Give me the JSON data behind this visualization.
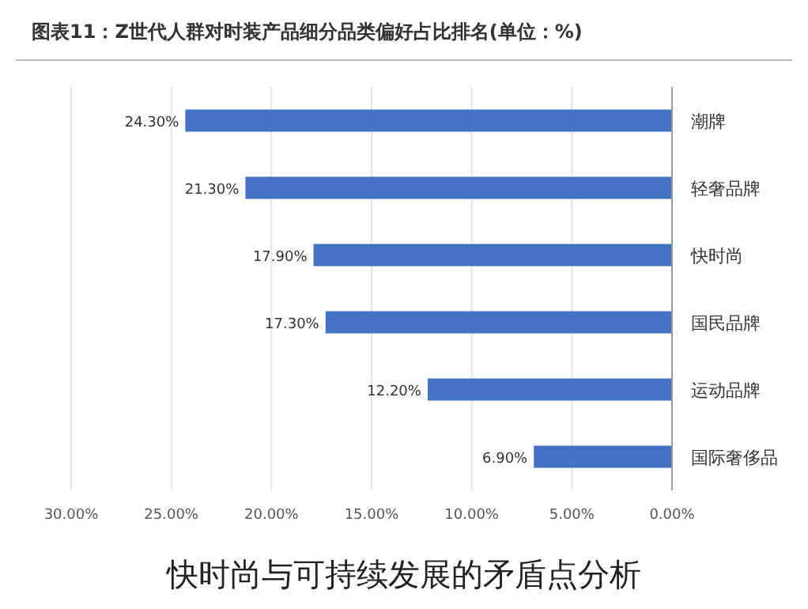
{
  "chart_data": {
    "type": "bar",
    "orientation": "horizontal",
    "title": "图表11：Z世代人群对时装产品细分品类偏好占比排名(单位：%)",
    "categories": [
      "潮牌",
      "轻奢品牌",
      "快时尚",
      "国民品牌",
      "运动品牌",
      "国际奢侈品"
    ],
    "values": [
      24.3,
      21.3,
      17.9,
      17.3,
      12.2,
      6.9
    ],
    "value_labels": [
      "24.30%",
      "21.30%",
      "17.90%",
      "17.30%",
      "12.20%",
      "6.90%"
    ],
    "color": "#4472c4",
    "xlim": [
      30,
      0
    ],
    "xticks": [
      {
        "value": 30,
        "label": "30.00%"
      },
      {
        "value": 25,
        "label": "25.00%"
      },
      {
        "value": 20,
        "label": "20.00%"
      },
      {
        "value": 15,
        "label": "15.00%"
      },
      {
        "value": 10,
        "label": "10.00%"
      },
      {
        "value": 5,
        "label": "5.00%"
      },
      {
        "value": 0,
        "label": "0.00%"
      }
    ],
    "grid": "x",
    "annotations": [
      "快时尚与可持续发展的矛盾点分析"
    ]
  }
}
